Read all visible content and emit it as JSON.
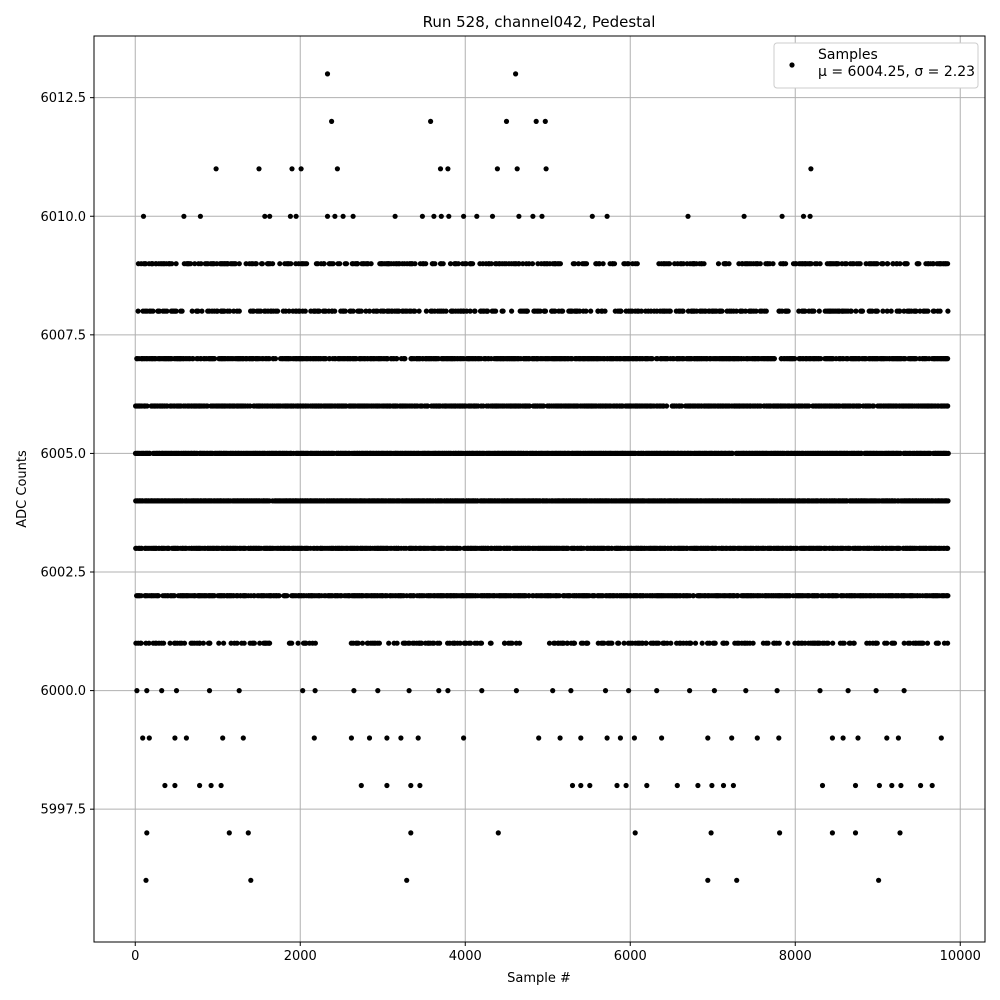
{
  "chart_data": {
    "type": "scatter",
    "title": "Run 528, channel042, Pedestal",
    "xlabel": "Sample #",
    "ylabel": "ADC Counts",
    "xlim": [
      -500,
      10300
    ],
    "ylim": [
      5994.7,
      6013.8
    ],
    "xticks": [
      0,
      2000,
      4000,
      6000,
      8000,
      10000
    ],
    "xtick_labels": [
      "0",
      "2000",
      "4000",
      "6000",
      "8000",
      "10000"
    ],
    "yticks": [
      5997.5,
      6000.0,
      6002.5,
      6005.0,
      6007.5,
      6010.0,
      6012.5
    ],
    "ytick_labels": [
      "5997.5",
      "6000.0",
      "6002.5",
      "6005.0",
      "6007.5",
      "6010.0",
      "6012.5"
    ],
    "grid": true,
    "marker_color": "#000000",
    "legend": {
      "position": "top-right",
      "entries": [
        {
          "label": "Samples",
          "sublabel": "μ = 6004.25, σ = 2.23"
        }
      ]
    },
    "series": [
      {
        "name": "Samples",
        "n_samples": 9850,
        "points": [
          [
            2330,
            6013
          ],
          [
            4610,
            6013
          ],
          [
            2380,
            6012
          ],
          [
            3580,
            6012
          ],
          [
            4500,
            6012
          ],
          [
            4860,
            6012
          ],
          [
            4970,
            6012
          ],
          [
            980,
            6011
          ],
          [
            1500,
            6011
          ],
          [
            1900,
            6011
          ],
          [
            2010,
            6011
          ],
          [
            2450,
            6011
          ],
          [
            3700,
            6011
          ],
          [
            3790,
            6011
          ],
          [
            4390,
            6011
          ],
          [
            4630,
            6011
          ],
          [
            4980,
            6011
          ],
          [
            8190,
            6011
          ],
          [
            100,
            6010
          ],
          [
            590,
            6010
          ],
          [
            790,
            6010
          ],
          [
            1570,
            6010
          ],
          [
            1630,
            6010
          ],
          [
            1880,
            6010
          ],
          [
            1950,
            6010
          ],
          [
            2330,
            6010
          ],
          [
            2420,
            6010
          ],
          [
            2520,
            6010
          ],
          [
            2640,
            6010
          ],
          [
            3150,
            6010
          ],
          [
            3480,
            6010
          ],
          [
            3620,
            6010
          ],
          [
            3710,
            6010
          ],
          [
            3800,
            6010
          ],
          [
            3980,
            6010
          ],
          [
            4140,
            6010
          ],
          [
            4330,
            6010
          ],
          [
            4650,
            6010
          ],
          [
            4820,
            6010
          ],
          [
            4930,
            6010
          ],
          [
            5540,
            6010
          ],
          [
            5720,
            6010
          ],
          [
            6700,
            6010
          ],
          [
            7380,
            6010
          ],
          [
            7840,
            6010
          ],
          [
            8100,
            6010
          ],
          [
            8180,
            6010
          ],
          [
            20,
            6000
          ],
          [
            140,
            6000
          ],
          [
            320,
            6000
          ],
          [
            500,
            6000
          ],
          [
            900,
            6000
          ],
          [
            1260,
            6000
          ],
          [
            2030,
            6000
          ],
          [
            2180,
            6000
          ],
          [
            2650,
            6000
          ],
          [
            2940,
            6000
          ],
          [
            3320,
            6000
          ],
          [
            3680,
            6000
          ],
          [
            3790,
            6000
          ],
          [
            4200,
            6000
          ],
          [
            4620,
            6000
          ],
          [
            5060,
            6000
          ],
          [
            5280,
            6000
          ],
          [
            5700,
            6000
          ],
          [
            5980,
            6000
          ],
          [
            6320,
            6000
          ],
          [
            6720,
            6000
          ],
          [
            7020,
            6000
          ],
          [
            7400,
            6000
          ],
          [
            7780,
            6000
          ],
          [
            8300,
            6000
          ],
          [
            8640,
            6000
          ],
          [
            8980,
            6000
          ],
          [
            9320,
            6000
          ],
          [
            90,
            5999
          ],
          [
            170,
            5999
          ],
          [
            480,
            5999
          ],
          [
            620,
            5999
          ],
          [
            1060,
            5999
          ],
          [
            1310,
            5999
          ],
          [
            2170,
            5999
          ],
          [
            2620,
            5999
          ],
          [
            2840,
            5999
          ],
          [
            3050,
            5999
          ],
          [
            3220,
            5999
          ],
          [
            3430,
            5999
          ],
          [
            3980,
            5999
          ],
          [
            4890,
            5999
          ],
          [
            5150,
            5999
          ],
          [
            5400,
            5999
          ],
          [
            5720,
            5999
          ],
          [
            5880,
            5999
          ],
          [
            6050,
            5999
          ],
          [
            6380,
            5999
          ],
          [
            6940,
            5999
          ],
          [
            7230,
            5999
          ],
          [
            7540,
            5999
          ],
          [
            7800,
            5999
          ],
          [
            8450,
            5999
          ],
          [
            8580,
            5999
          ],
          [
            8760,
            5999
          ],
          [
            9110,
            5999
          ],
          [
            9250,
            5999
          ],
          [
            9770,
            5999
          ],
          [
            360,
            5998
          ],
          [
            480,
            5998
          ],
          [
            780,
            5998
          ],
          [
            920,
            5998
          ],
          [
            1040,
            5998
          ],
          [
            2740,
            5998
          ],
          [
            3050,
            5998
          ],
          [
            3340,
            5998
          ],
          [
            3450,
            5998
          ],
          [
            5300,
            5998
          ],
          [
            5400,
            5998
          ],
          [
            5510,
            5998
          ],
          [
            5840,
            5998
          ],
          [
            5950,
            5998
          ],
          [
            6200,
            5998
          ],
          [
            6570,
            5998
          ],
          [
            6820,
            5998
          ],
          [
            6990,
            5998
          ],
          [
            7130,
            5998
          ],
          [
            7250,
            5998
          ],
          [
            8330,
            5998
          ],
          [
            8730,
            5998
          ],
          [
            9020,
            5998
          ],
          [
            9170,
            5998
          ],
          [
            9280,
            5998
          ],
          [
            9520,
            5998
          ],
          [
            9660,
            5998
          ],
          [
            140,
            5997
          ],
          [
            1140,
            5997
          ],
          [
            1370,
            5997
          ],
          [
            3340,
            5997
          ],
          [
            4400,
            5997
          ],
          [
            6060,
            5997
          ],
          [
            6980,
            5997
          ],
          [
            7810,
            5997
          ],
          [
            8450,
            5997
          ],
          [
            8730,
            5997
          ],
          [
            9270,
            5997
          ],
          [
            130,
            5996
          ],
          [
            1400,
            5996
          ],
          [
            3290,
            5996
          ],
          [
            6940,
            5996
          ],
          [
            7290,
            5996
          ],
          [
            9010,
            5996
          ]
        ],
        "dense_bands": [
          {
            "value": 6007,
            "density": 0.75,
            "gaps": []
          },
          {
            "value": 6006,
            "density": 0.75,
            "gaps": []
          },
          {
            "value": 6005,
            "density": 0.92,
            "gaps": []
          },
          {
            "value": 6004,
            "density": 0.92,
            "gaps": []
          },
          {
            "value": 6003,
            "density": 0.8,
            "gaps": []
          },
          {
            "value": 6002,
            "density": 0.75,
            "gaps": []
          },
          {
            "value": 6009,
            "density": 0.4,
            "gaps": [
              [
                6100,
                6300
              ],
              [
                6900,
                7000
              ]
            ]
          },
          {
            "value": 6008,
            "density": 0.35,
            "gaps": [
              [
                5700,
                5800
              ],
              [
                7700,
                7750
              ]
            ]
          },
          {
            "value": 6001,
            "density": 0.35,
            "gaps": [
              [
                1650,
                1850
              ],
              [
                2250,
                2550
              ],
              [
                4700,
                5000
              ]
            ]
          }
        ]
      }
    ]
  }
}
